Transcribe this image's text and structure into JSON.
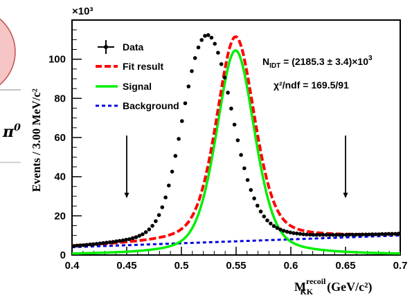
{
  "chart_data": {
    "type": "line",
    "ylabel": "Events / 3.00 MeV/c²",
    "xlabel_main": "M",
    "xlabel_sup": "recoil",
    "xlabel_sub": "KK",
    "xlabel_units": "(GeV/c²)",
    "y_multiplier": "×10³",
    "xlim": [
      0.4,
      0.7
    ],
    "ylim": [
      0,
      120
    ],
    "x_ticks": [
      0.4,
      0.45,
      0.5,
      0.55,
      0.6,
      0.65,
      0.7
    ],
    "x_tick_labels": [
      "0.4",
      "0.45",
      "0.5",
      "0.55",
      "0.6",
      "0.65",
      "0.7"
    ],
    "y_ticks": [
      0,
      20,
      40,
      60,
      80,
      100
    ],
    "y_tick_labels": [
      "0",
      "20",
      "40",
      "60",
      "80",
      "100"
    ],
    "legend": {
      "placement": "top-left",
      "entries": [
        {
          "label": "Data",
          "color": "#000000",
          "style": "marker"
        },
        {
          "label": "Fit result",
          "color": "#ff0000",
          "style": "dashed"
        },
        {
          "label": "Signal",
          "color": "#00ee00",
          "style": "solid"
        },
        {
          "label": "Background",
          "color": "#0000dd",
          "style": "dotted"
        }
      ]
    },
    "annotations": {
      "n_idt_main": "N",
      "n_idt_sub": "IDT",
      "n_idt_value": " = (2185.3 ± 3.4)×10",
      "n_idt_exp": "3",
      "chi2": "χ²/ndf = 169.5/91"
    },
    "arrows": [
      {
        "x": 0.45,
        "y_from": 61,
        "y_to": 29
      },
      {
        "x": 0.65,
        "y_from": 61,
        "y_to": 29
      }
    ],
    "series": [
      {
        "name": "Data",
        "x": [
          0.4015,
          0.4045,
          0.4075,
          0.4105,
          0.4135,
          0.4165,
          0.4195,
          0.4225,
          0.4255,
          0.4285,
          0.4315,
          0.4345,
          0.4375,
          0.4405,
          0.4435,
          0.4465,
          0.4495,
          0.4525,
          0.4555,
          0.4585,
          0.4615,
          0.4645,
          0.4675,
          0.4705,
          0.4735,
          0.4765,
          0.4795,
          0.4825,
          0.4855,
          0.4885,
          0.4915,
          0.4945,
          0.4975,
          0.5005,
          0.5035,
          0.5065,
          0.5095,
          0.5125,
          0.5155,
          0.5185,
          0.5215,
          0.5245,
          0.5275,
          0.5305,
          0.5335,
          0.5365,
          0.5395,
          0.5425,
          0.5455,
          0.5485,
          0.5515,
          0.5545,
          0.5575,
          0.5605,
          0.5635,
          0.5665,
          0.5695,
          0.5725,
          0.5755,
          0.5785,
          0.5815,
          0.5845,
          0.5875,
          0.5905,
          0.5935,
          0.5965,
          0.5995,
          0.6025,
          0.6055,
          0.6085,
          0.6115,
          0.6145,
          0.6175,
          0.6205,
          0.6235,
          0.6265,
          0.6295,
          0.6325,
          0.6355,
          0.6385,
          0.6415,
          0.6445,
          0.6475,
          0.6505,
          0.6535,
          0.6565,
          0.6595,
          0.6625,
          0.6655,
          0.6685,
          0.6715,
          0.6745,
          0.6775,
          0.6805,
          0.6835,
          0.6865,
          0.6895,
          0.6925,
          0.6955,
          0.6985
        ],
        "y": [
          4.6,
          4.8,
          4.9,
          5.0,
          5.2,
          5.4,
          5.5,
          5.7,
          5.9,
          6.1,
          6.3,
          6.5,
          6.7,
          7.0,
          7.2,
          7.5,
          7.8,
          8.1,
          8.6,
          9.1,
          9.8,
          10.6,
          11.7,
          13.1,
          14.9,
          17.3,
          20.4,
          24.4,
          29.4,
          35.5,
          42.6,
          50.6,
          59.3,
          68.4,
          77.5,
          86.1,
          93.9,
          100.6,
          106.0,
          109.8,
          111.9,
          112.3,
          111.0,
          107.9,
          103.3,
          97.5,
          90.6,
          82.9,
          74.8,
          66.6,
          58.6,
          51.1,
          44.3,
          38.3,
          33.2,
          28.9,
          25.2,
          22.2,
          19.7,
          17.7,
          16.1,
          14.8,
          13.8,
          13.0,
          12.4,
          11.9,
          11.5,
          11.2,
          11.0,
          10.8,
          10.6,
          10.5,
          10.4,
          10.3,
          10.3,
          10.3,
          10.3,
          10.3,
          10.3,
          10.3,
          10.3,
          10.3,
          10.3,
          10.3,
          10.4,
          10.4,
          10.4,
          10.4,
          10.5,
          10.5,
          10.5,
          10.6,
          10.6,
          10.6,
          10.7,
          10.7,
          10.8,
          10.8,
          10.8,
          10.9
        ]
      },
      {
        "name": "Fit result",
        "color": "#ff0000",
        "function": "signal_plus_background"
      },
      {
        "name": "Signal",
        "color": "#00ee00",
        "function": "signal"
      },
      {
        "name": "Background",
        "color": "#0000dd",
        "function": "background"
      }
    ],
    "model": {
      "peak_mean": 0.5495,
      "signal_amplitude": 104.5,
      "core_sigma": 0.0175,
      "tail_gamma": 0.021,
      "core_weight": 0.62,
      "background": {
        "x0": 0.4,
        "y0": 4.0,
        "slope": 20.0
      }
    },
    "decoration": {
      "clipped_symbol_text": "π",
      "clipped_symbol_sup": "0",
      "circle_fill": "#f6c6c6",
      "circle_stroke": "#c05050"
    }
  }
}
